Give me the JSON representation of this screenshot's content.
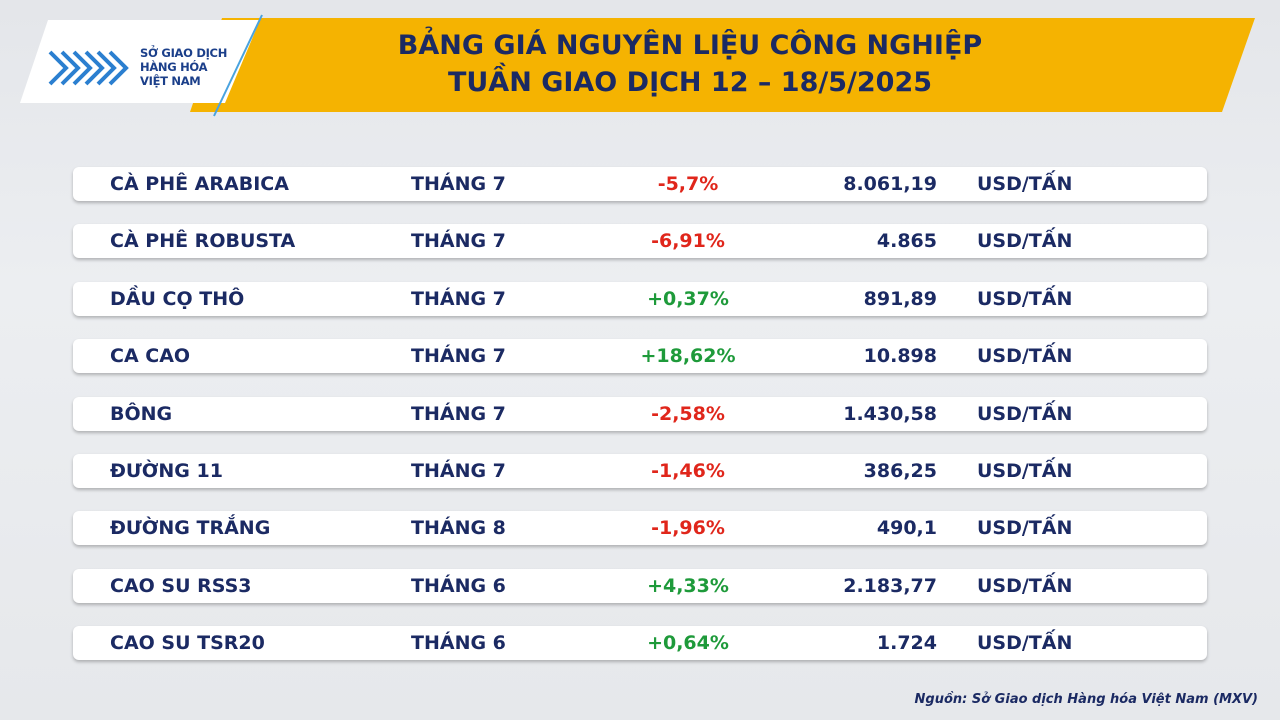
{
  "header": {
    "logo": [
      "SỞ GIAO DỊCH",
      "HÀNG HÓA",
      "VIỆT NAM"
    ],
    "title": [
      "BẢNG GIÁ NGUYÊN LIỆU CÔNG NGHIỆP",
      "TUẦN GIAO DỊCH 12 – 18/5/2025"
    ]
  },
  "table": {
    "rows": [
      [
        "CÀ PHÊ ARABICA",
        "THÁNG 7",
        "-5,7%",
        "8.061,19",
        "USD/TẤN"
      ],
      [
        "CÀ PHÊ ROBUSTA",
        "THÁNG 7",
        "-6,91%",
        "4.865",
        "USD/TẤN"
      ],
      [
        "DẦU CỌ THÔ",
        "THÁNG 7",
        "+0,37%",
        "891,89",
        "USD/TẤN"
      ],
      [
        "CA CAO",
        "THÁNG 7",
        "+18,62%",
        "10.898",
        "USD/TẤN"
      ],
      [
        "BÔNG",
        "THÁNG 7",
        "-2,58%",
        "1.430,58",
        "USD/TẤN"
      ],
      [
        "ĐƯỜNG 11",
        "THÁNG 7",
        "-1,46%",
        "386,25",
        "USD/TẤN"
      ],
      [
        "ĐƯỜNG TRẮNG",
        "THÁNG 8",
        "-1,96%",
        "490,1",
        "USD/TẤN"
      ],
      [
        "CAO SU RSS3",
        "THÁNG 6",
        "+4,33%",
        "2.183,77",
        "USD/TẤN"
      ],
      [
        "CAO SU TSR20",
        "THÁNG 6",
        "+0,64%",
        "1.724",
        "USD/TẤN"
      ]
    ]
  },
  "footer": {
    "source": "Nguồn: Sở Giao dịch Hàng hóa Việt Nam (MXV)"
  }
}
